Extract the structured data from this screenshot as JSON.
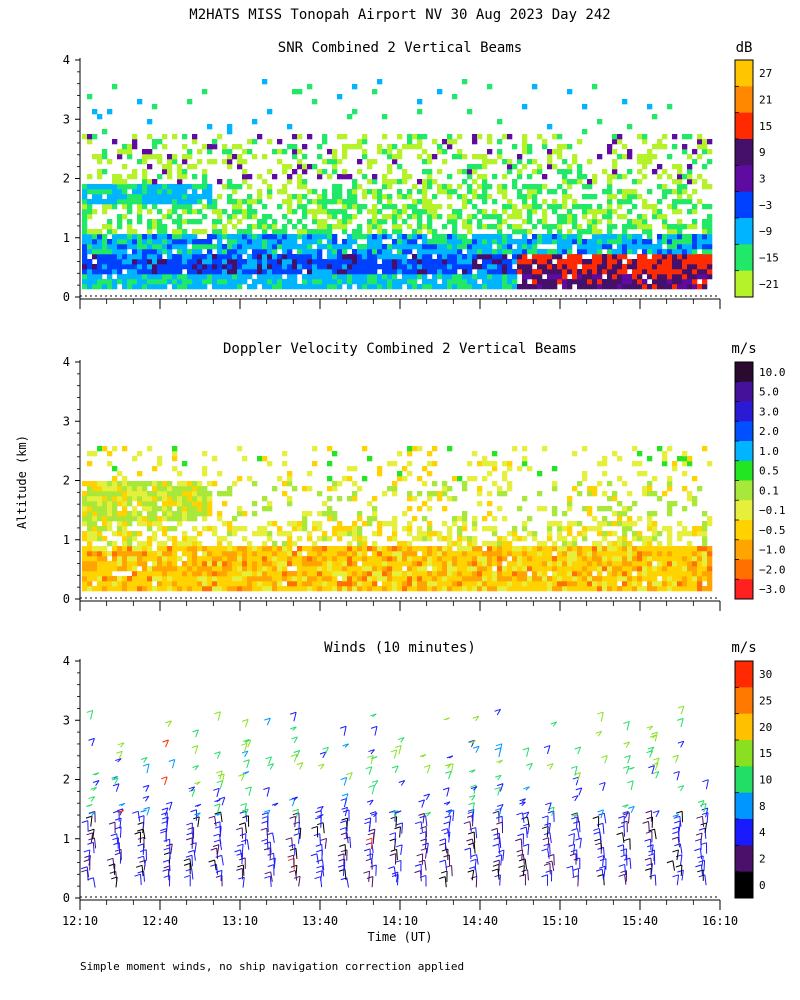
{
  "page_title": "M2HATS MISS Tonopah Airport NV  30 Aug 2023 Day 242",
  "ylabel": "Altitude (km)",
  "footer": "Simple moment winds, no ship navigation correction applied",
  "chart_data": [
    {
      "type": "heatmap",
      "title": "SNR Combined 2 Vertical Beams",
      "xlabel": "",
      "ylabel": "Altitude (km)",
      "ylim": [
        0,
        4
      ],
      "yticks": [
        "0",
        "1",
        "2",
        "3",
        "4"
      ],
      "xlim": [
        "12:10",
        "16:10"
      ],
      "colorbar": {
        "unit": "dB",
        "labels": [
          "27",
          "21",
          "15",
          "9",
          "3",
          "−3",
          "−9",
          "−15",
          "−21"
        ],
        "colors": [
          "#ffc600",
          "#ff8800",
          "#ff2a00",
          "#44106a",
          "#5f0aa0",
          "#0040ff",
          "#00b4ff",
          "#22e868",
          "#b6f22a"
        ]
      }
    },
    {
      "type": "heatmap",
      "title": "Doppler Velocity Combined 2 Vertical Beams",
      "xlabel": "",
      "ylabel": "Altitude (km)",
      "ylim": [
        0,
        4
      ],
      "yticks": [
        "0",
        "1",
        "2",
        "3",
        "4"
      ],
      "xlim": [
        "12:10",
        "16:10"
      ],
      "colorbar": {
        "unit": "m/s",
        "labels": [
          "10.0",
          "5.0",
          "3.0",
          "2.0",
          "1.0",
          "0.5",
          "0.1",
          "−0.1",
          "−0.5",
          "−1.0",
          "−2.0",
          "−3.0"
        ],
        "colors": [
          "#2a0a2e",
          "#45109a",
          "#2a1ad6",
          "#0050ff",
          "#00b4ff",
          "#22e622",
          "#a8e83a",
          "#e6f03c",
          "#ffd200",
          "#ffa400",
          "#ff7000",
          "#ff2020"
        ]
      }
    },
    {
      "type": "scatter",
      "title": "Winds (10 minutes)",
      "xlabel": "Time (UT)",
      "ylabel": "Altitude (km)",
      "ylim": [
        0,
        4
      ],
      "yticks": [
        "0",
        "1",
        "2",
        "3",
        "4"
      ],
      "xticks": [
        "12:10",
        "12:40",
        "13:10",
        "13:40",
        "14:10",
        "14:40",
        "15:10",
        "15:40",
        "16:10"
      ],
      "colorbar": {
        "unit": "m/s",
        "labels": [
          "30",
          "25",
          "20",
          "15",
          "10",
          "8",
          "4",
          "2",
          "0"
        ],
        "colors": [
          "#ff2a00",
          "#ff7800",
          "#ffc000",
          "#88e020",
          "#22dd66",
          "#0096ff",
          "#1a1aff",
          "#4a106a",
          "#000000"
        ]
      }
    }
  ]
}
